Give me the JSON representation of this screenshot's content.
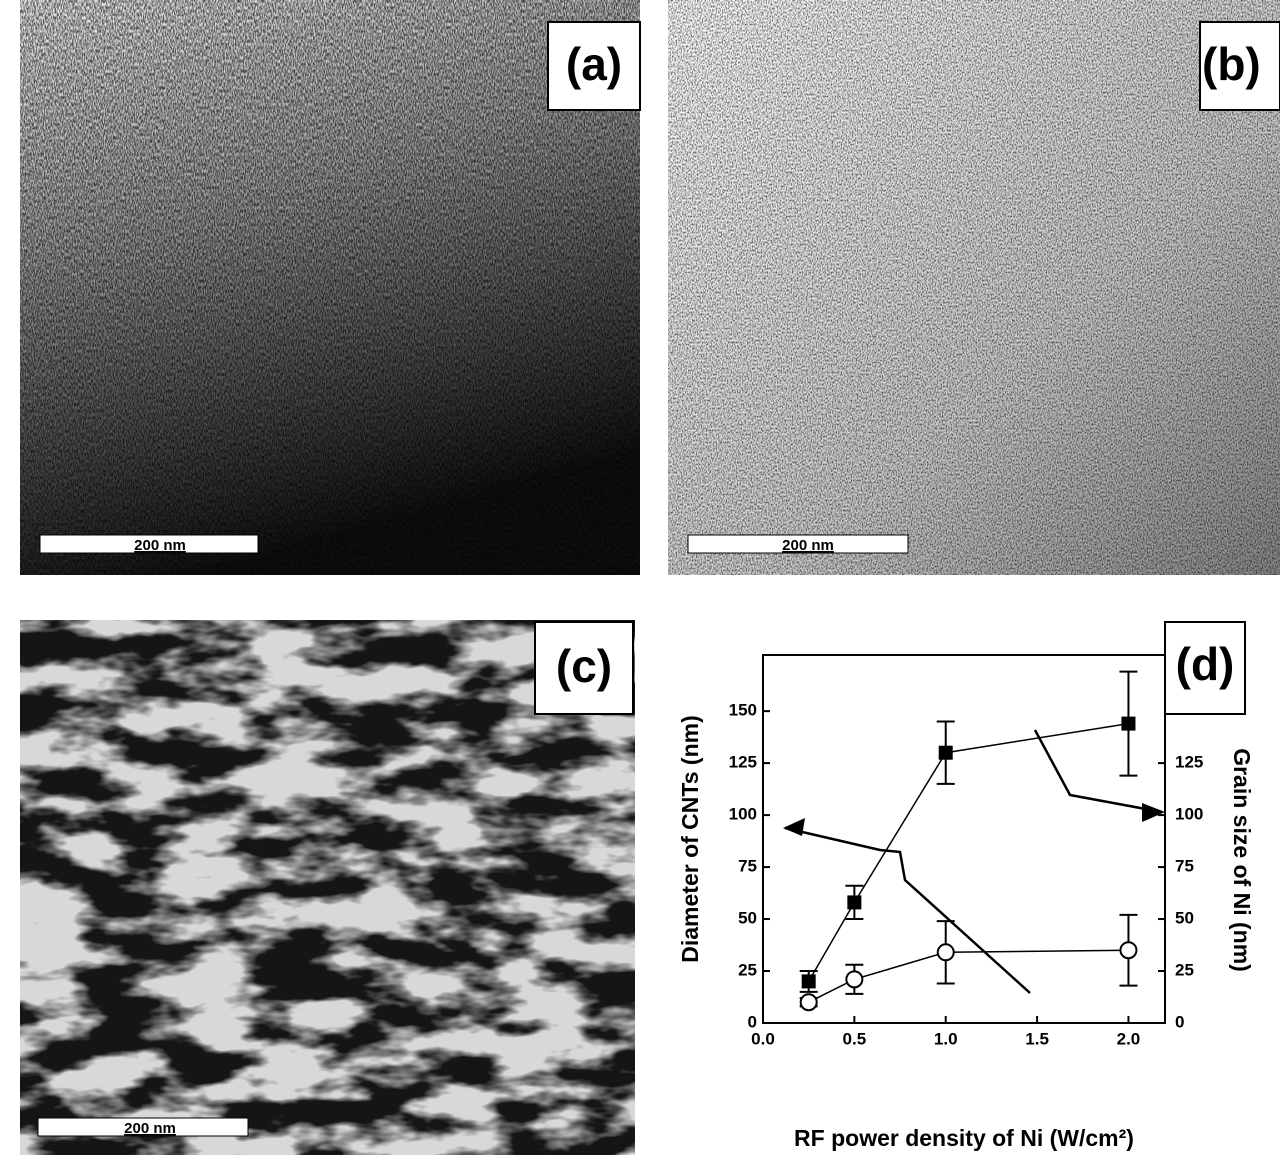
{
  "panels": [
    {
      "label": "(a)",
      "scale_bar": "200 nm"
    },
    {
      "label": "(b)",
      "scale_bar": "200 nm"
    },
    {
      "label": "(c)",
      "scale_bar": "200 nm"
    }
  ],
  "chart_data": {
    "type": "line",
    "panel_label": "(d)",
    "xlabel": "RF power density of Ni (W/cm²)",
    "ylabel": "Diameter of CNTs (nm)",
    "y2label": "Grain size of Ni (nm)",
    "x": [
      0.25,
      0.5,
      1.0,
      2.0
    ],
    "xlim": [
      0,
      2.2
    ],
    "xticks": [
      {
        "value": 0,
        "label": "0.0"
      },
      0.5,
      {
        "value": 1,
        "label": "1.0"
      },
      1.5,
      {
        "value": 2,
        "label": "2.0"
      }
    ],
    "ylim": [
      0,
      177
    ],
    "yticks": [
      0,
      25,
      50,
      75,
      100,
      125,
      150
    ],
    "y2lim": [
      0,
      177
    ],
    "y2ticks": [
      0,
      25,
      50,
      75,
      100,
      125
    ],
    "series": [
      {
        "color": "#000000",
        "marker": "square",
        "values": [
          20,
          58,
          130,
          144
        ],
        "errors": [
          5,
          8,
          15,
          25
        ]
      },
      {
        "color": "#000000",
        "marker": "circle",
        "axis": "y2",
        "values": [
          10,
          21,
          34,
          35
        ],
        "errors": [
          2,
          7,
          15,
          17
        ]
      }
    ]
  }
}
